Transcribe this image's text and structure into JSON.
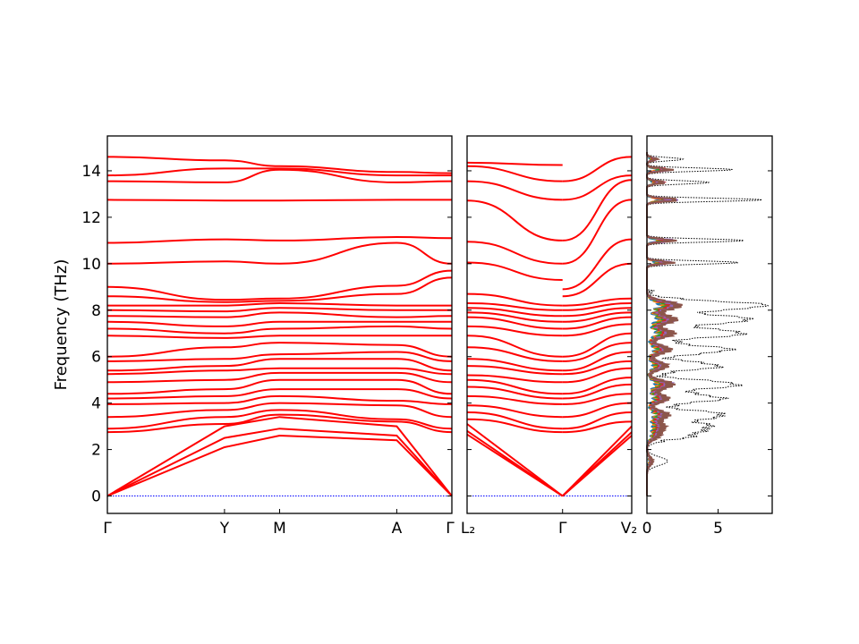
{
  "chart_data": [
    {
      "panel": "band-structure-main",
      "type": "line",
      "ylabel": "Frequency (THz)",
      "ylim": [
        -0.75,
        15.5
      ],
      "yticks": [
        0,
        2,
        4,
        6,
        8,
        10,
        12,
        14
      ],
      "path_labels": [
        "Γ",
        "Y",
        "M",
        "A",
        "Γ"
      ],
      "path_positions": [
        0,
        0.34,
        0.5,
        0.84,
        1.0
      ],
      "band_color": "#ff0000",
      "zero_line_color": "#0000ff",
      "band_values": {
        "Γ": [
          0,
          0,
          0,
          2.75,
          2.9,
          3.4,
          3.95,
          4.2,
          4.4,
          4.9,
          5.25,
          5.4,
          5.8,
          6.0,
          6.9,
          7.2,
          7.5,
          7.75,
          8.0,
          8.2,
          8.6,
          9.0,
          10.0,
          10.9,
          12.75,
          13.55,
          13.8,
          14.6
        ],
        "Y": [
          2.1,
          2.5,
          3.0,
          3.1,
          3.4,
          3.7,
          4.0,
          4.3,
          4.6,
          5.0,
          5.4,
          5.6,
          5.9,
          6.4,
          6.8,
          7.0,
          7.3,
          7.7,
          7.95,
          8.2,
          8.35,
          8.45,
          10.1,
          11.05,
          12.72,
          13.5,
          14.1,
          14.45
        ],
        "M": [
          2.6,
          2.9,
          3.4,
          3.5,
          3.7,
          4.0,
          4.3,
          4.6,
          5.0,
          5.3,
          5.5,
          5.9,
          6.1,
          6.6,
          6.9,
          7.2,
          7.5,
          7.9,
          8.1,
          8.3,
          8.4,
          8.5,
          10.0,
          11.0,
          12.72,
          14.05,
          14.1,
          14.2
        ],
        "A": [
          2.4,
          2.6,
          3.0,
          3.2,
          3.3,
          3.9,
          4.1,
          4.6,
          5.0,
          5.3,
          5.5,
          5.9,
          6.2,
          6.5,
          6.9,
          7.3,
          7.5,
          7.7,
          8.0,
          8.2,
          8.7,
          9.05,
          10.9,
          11.15,
          12.75,
          13.5,
          13.8,
          13.95
        ],
        "Γend": [
          0,
          0,
          0,
          2.75,
          2.9,
          3.4,
          3.95,
          4.2,
          4.4,
          4.9,
          5.25,
          5.4,
          5.8,
          6.0,
          6.9,
          7.2,
          7.5,
          7.75,
          8.0,
          8.2,
          9.4,
          9.7,
          10.0,
          11.1,
          12.75,
          13.55,
          13.8,
          13.9
        ]
      }
    },
    {
      "panel": "band-structure-branch",
      "type": "line",
      "ylim": [
        -0.75,
        15.5
      ],
      "path_labels": [
        "L₂",
        "Γ",
        "V₂"
      ],
      "path_positions": [
        0,
        0.58,
        1.0
      ],
      "band_color": "#ff0000",
      "zero_line_color": "#0000ff",
      "band_values": {
        "L₂": [
          2.65,
          2.8,
          3.1,
          3.3,
          3.6,
          3.9,
          4.3,
          4.7,
          5.0,
          5.2,
          5.6,
          5.9,
          6.4,
          6.9,
          7.3,
          7.7,
          7.9,
          8.1,
          8.3,
          8.7,
          10.05,
          10.95,
          12.72,
          13.55,
          14.2,
          14.35
        ],
        "Γ": [
          0,
          0,
          0,
          2.75,
          2.9,
          3.4,
          3.95,
          4.2,
          4.4,
          4.9,
          5.25,
          5.4,
          5.8,
          6.0,
          6.9,
          7.2,
          7.5,
          7.75,
          8.0,
          8.2,
          9.3,
          10.0,
          11.0,
          12.75,
          13.55,
          14.25
        ],
        "Γright": [
          0,
          0,
          0,
          2.75,
          2.9,
          3.4,
          3.95,
          4.2,
          4.4,
          4.9,
          5.25,
          5.4,
          5.8,
          6.0,
          6.9,
          7.2,
          7.5,
          7.75,
          8.0,
          8.2,
          8.6,
          8.9,
          10.0,
          11.0,
          12.75,
          13.55,
          13.8,
          14.6
        ],
        "V₂": [
          2.6,
          2.75,
          3.0,
          3.2,
          3.6,
          4.0,
          4.4,
          4.8,
          5.1,
          5.5,
          5.8,
          6.2,
          6.6,
          7.0,
          7.4,
          7.7,
          7.9,
          8.1,
          8.3,
          8.5,
          10.0,
          11.05,
          12.75,
          13.6,
          13.8,
          14.6
        ]
      }
    },
    {
      "panel": "density-of-states",
      "type": "line",
      "xticks": [
        0,
        5
      ],
      "xlim": [
        0,
        8.8
      ],
      "ylim": [
        -0.75,
        15.5
      ],
      "total_dos_color": "#000000",
      "projection_colors": [
        "#1f77b4",
        "#ff7f0e",
        "#2ca02c",
        "#d62728",
        "#9467bd",
        "#8c564b"
      ],
      "dos_peaks": [
        {
          "f": 14.5,
          "total": 2.6
        },
        {
          "f": 14.05,
          "total": 6.2
        },
        {
          "f": 13.5,
          "total": 4.5
        },
        {
          "f": 12.75,
          "total": 8.3
        },
        {
          "f": 11.0,
          "total": 7.0
        },
        {
          "f": 10.05,
          "total": 6.6
        },
        {
          "f": 8.2,
          "total": 8.7
        },
        {
          "f": 7.6,
          "total": 7.5
        },
        {
          "f": 7.0,
          "total": 7.0
        },
        {
          "f": 6.3,
          "total": 6.0
        },
        {
          "f": 5.6,
          "total": 5.2
        },
        {
          "f": 4.8,
          "total": 6.6
        },
        {
          "f": 4.2,
          "total": 5.4
        },
        {
          "f": 3.5,
          "total": 5.5
        },
        {
          "f": 3.0,
          "total": 4.2
        },
        {
          "f": 2.6,
          "total": 3.0
        },
        {
          "f": 1.5,
          "total": 1.5
        }
      ]
    }
  ]
}
